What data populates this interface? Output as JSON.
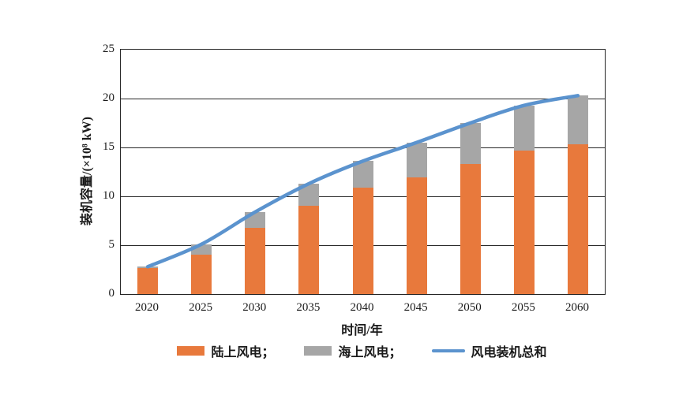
{
  "chart_data": {
    "type": "bar",
    "subtype": "stacked-bars-with-total-line",
    "categories": [
      "2020",
      "2025",
      "2030",
      "2035",
      "2040",
      "2045",
      "2050",
      "2055",
      "2060"
    ],
    "series": [
      {
        "name": "陆上风电",
        "type": "bar",
        "color": "#E8793C",
        "values": [
          2.7,
          4.0,
          6.8,
          9.0,
          10.9,
          11.9,
          13.3,
          14.7,
          15.3
        ]
      },
      {
        "name": "海上风电",
        "type": "bar",
        "color": "#A6A6A6",
        "values": [
          0.1,
          1.1,
          1.6,
          2.3,
          2.7,
          3.6,
          4.2,
          4.6,
          5.0
        ]
      },
      {
        "name": "风电装机总和",
        "type": "line",
        "color": "#5B93CE",
        "values": [
          2.8,
          5.1,
          8.4,
          11.3,
          13.6,
          15.5,
          17.5,
          19.3,
          20.3
        ]
      }
    ],
    "title": "",
    "xlabel": "时间/年",
    "ylabel": "装机容量/(×10⁸ kW)",
    "ylim": [
      0,
      25
    ],
    "yticks": [
      0,
      5,
      10,
      15,
      20,
      25
    ],
    "grid": true,
    "legend_position": "bottom"
  },
  "legend": {
    "items": [
      {
        "label": "陆上风电；",
        "swatch": "bar",
        "color": "#E8793C"
      },
      {
        "label": "海上风电；",
        "swatch": "bar",
        "color": "#A6A6A6"
      },
      {
        "label": "风电装机总和",
        "swatch": "line",
        "color": "#5B93CE"
      }
    ]
  },
  "colors": {
    "onshore_bar": "#E8793C",
    "offshore_bar": "#A6A6A6",
    "total_line": "#5B93CE",
    "axis_and_grid": "#262626",
    "background": "#FFFFFF"
  }
}
